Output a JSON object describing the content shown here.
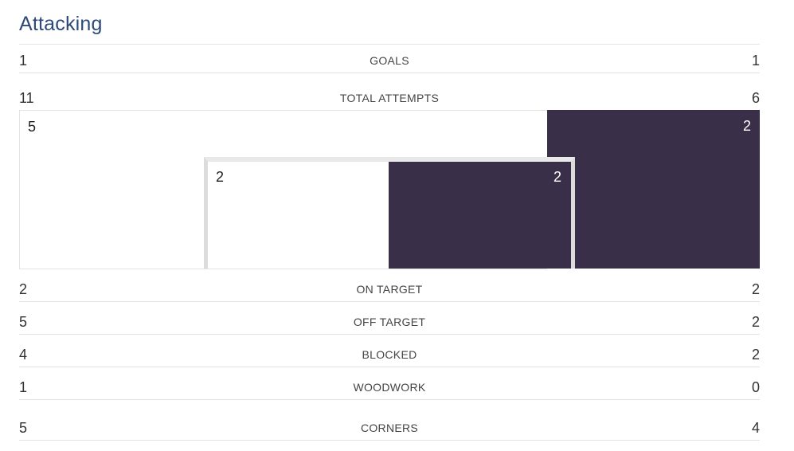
{
  "section": {
    "title": "Attacking"
  },
  "colors": {
    "title": "#2e4a78",
    "away_fill": "#3a2f48",
    "home_fill": "#ffffff"
  },
  "stats": {
    "goals": {
      "label": "GOALS",
      "home": "1",
      "away": "1"
    },
    "total_attempts": {
      "label": "TOTAL ATTEMPTS",
      "home": "11",
      "away": "6"
    },
    "on_target": {
      "label": "ON TARGET",
      "home": "2",
      "away": "2"
    },
    "off_target": {
      "label": "OFF TARGET",
      "home": "5",
      "away": "2"
    },
    "blocked": {
      "label": "BLOCKED",
      "home": "4",
      "away": "2"
    },
    "woodwork": {
      "label": "WOODWORK",
      "home": "1",
      "away": "0"
    },
    "corners": {
      "label": "CORNERS",
      "home": "5",
      "away": "4"
    }
  },
  "goal_viz": {
    "outside_box": {
      "home": "5",
      "away": "2"
    },
    "inside_box": {
      "home": "2",
      "away": "2"
    }
  }
}
